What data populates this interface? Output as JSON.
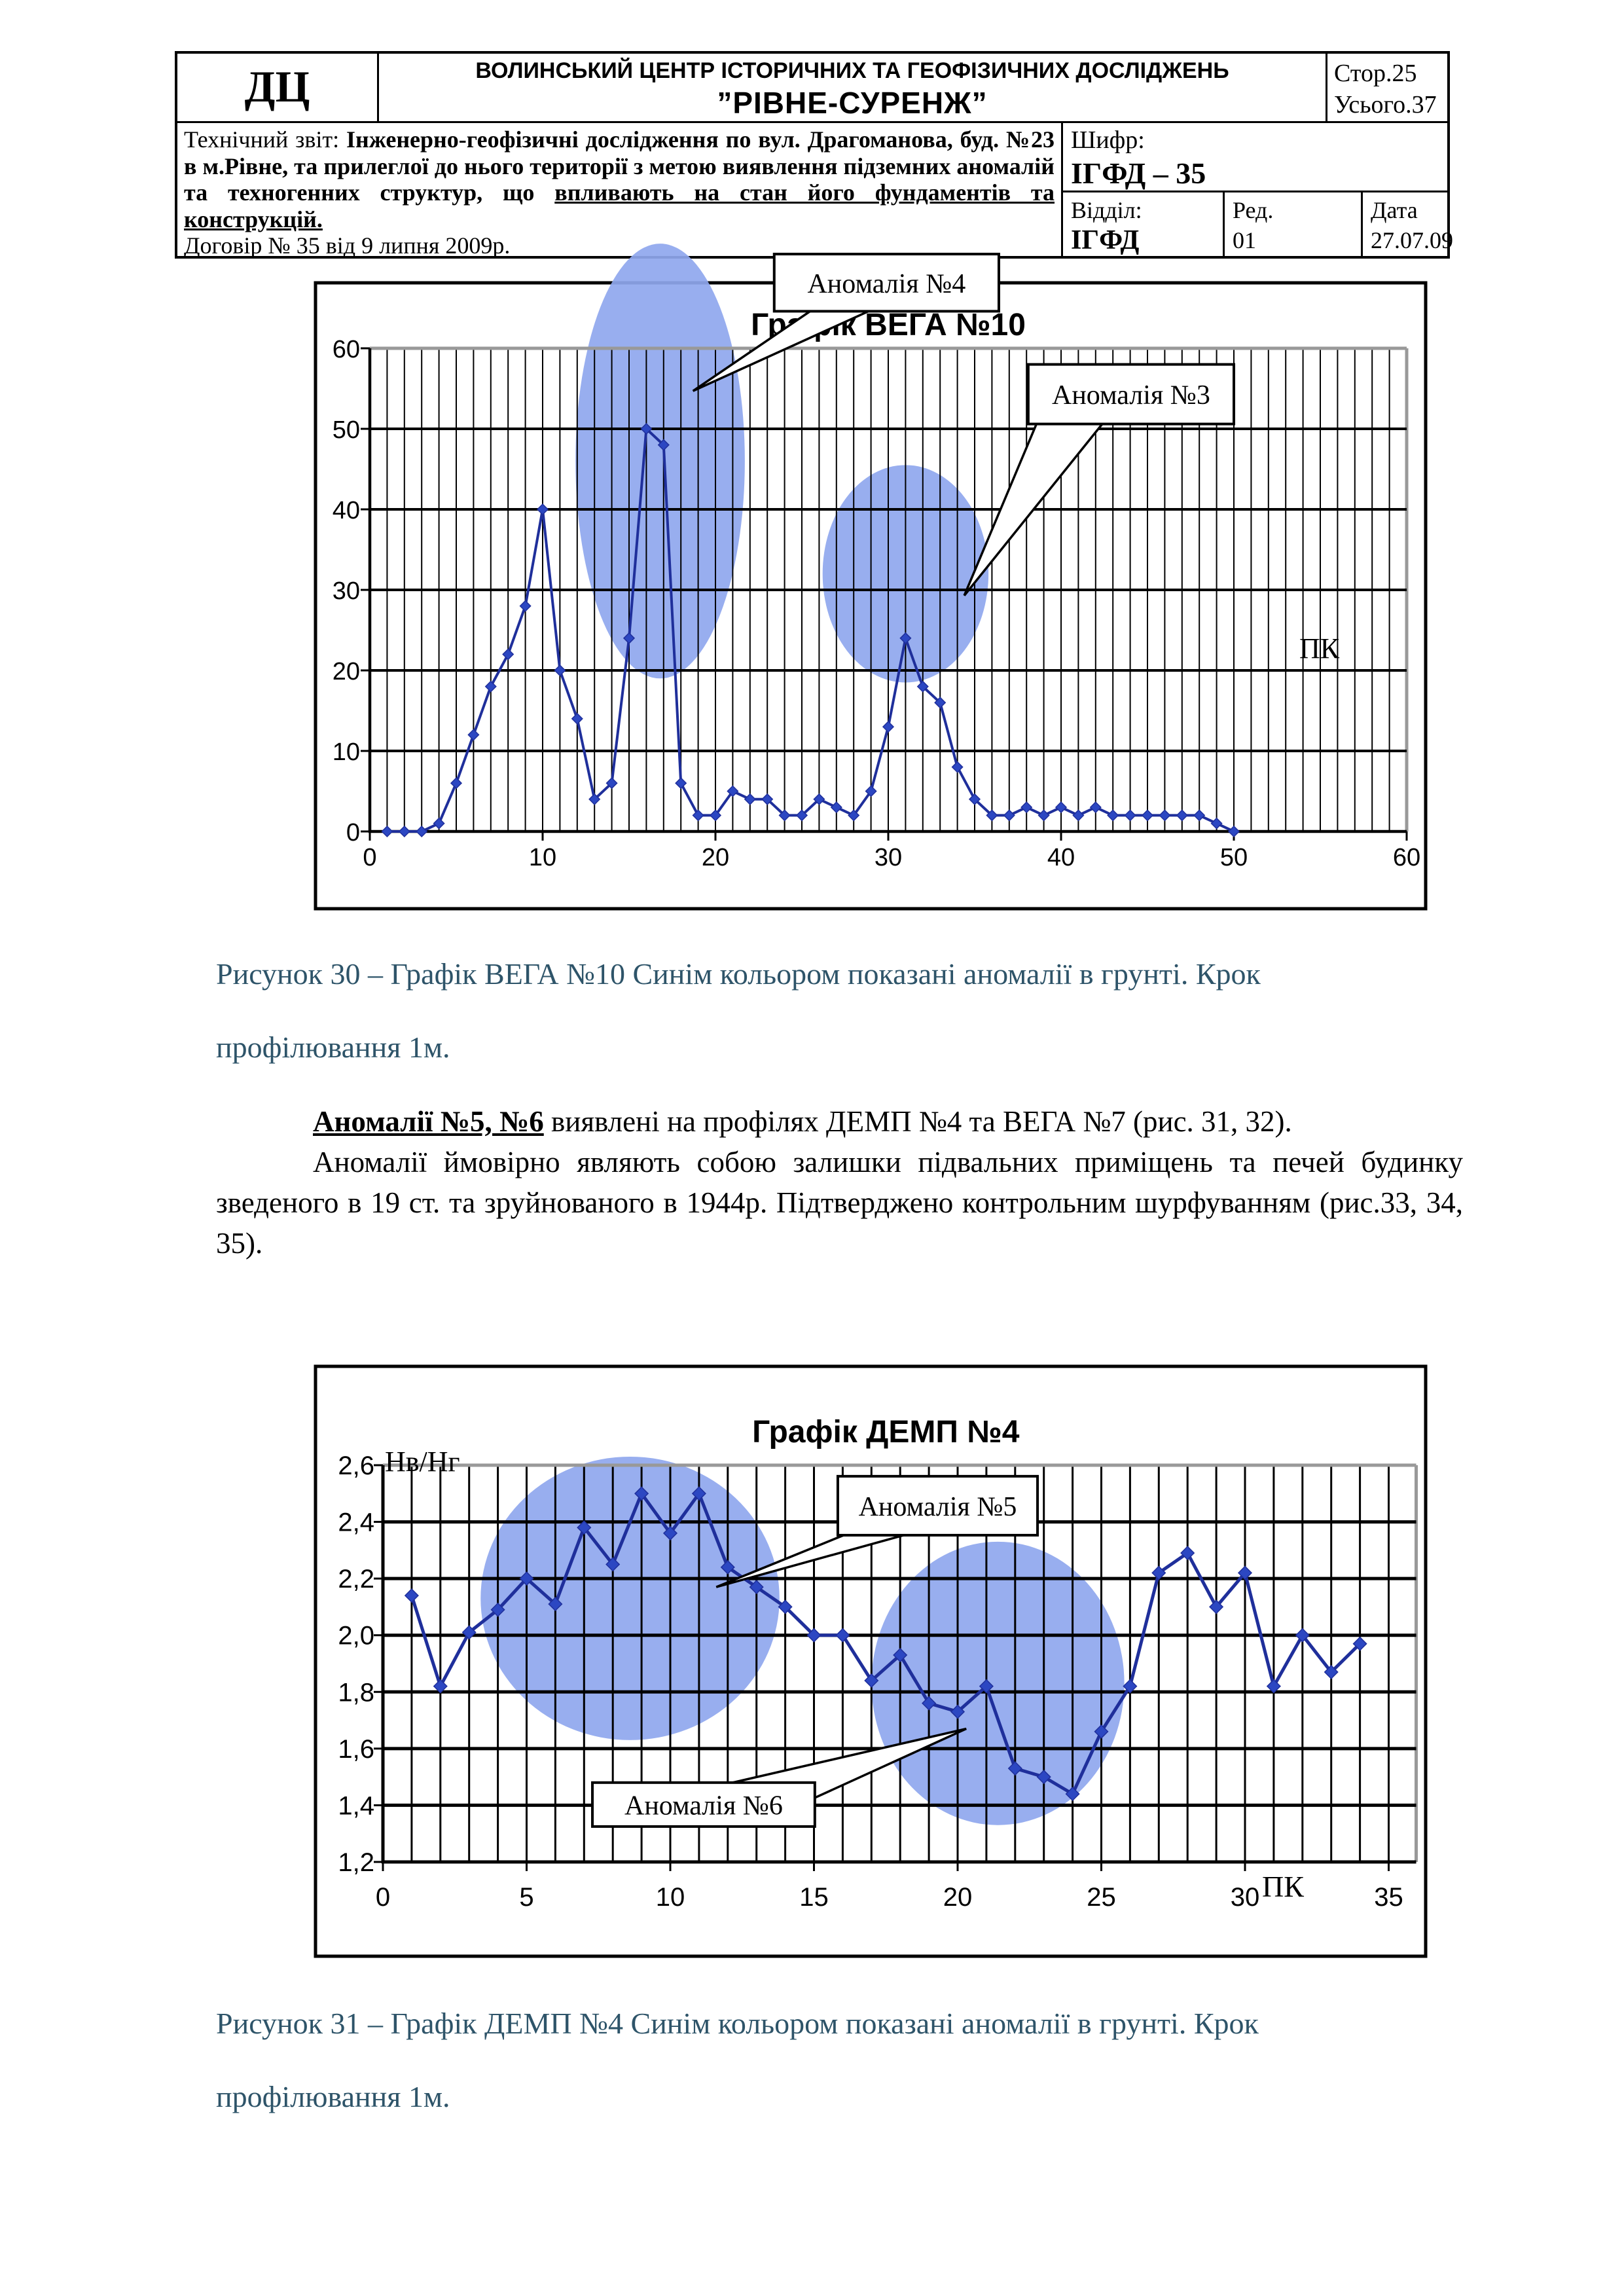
{
  "header": {
    "logo": "ДЦ",
    "org_line1": "ВОЛИНСЬКИЙ ЦЕНТР ІСТОРИЧНИХ ТА ГЕОФІЗИЧНИХ ДОСЛІДЖЕНЬ",
    "org_line2": "”РІВНЕ-СУРЕНЖ”",
    "page_label": "Стор.25",
    "total_label": "Усього.37",
    "report_label": "Технічний звіт:",
    "report_bold": "Інженерно-геофізичні дослідження по вул. Драгоманова, буд. №23 в м.Рівне, та прилеглої до нього території з метою виявлення підземних аномалій та техногенних структур, що",
    "report_bold_underline": "впливають на стан його фундаментів та конструкцій.",
    "contract": "Договір № 35 від 9 липня 2009р.",
    "cipher_label": "Шифр:",
    "cipher_value": "ІГФД – 35",
    "dept_label": "Відділ:",
    "dept_value": "ІГФД",
    "red_label": "Ред.",
    "red_value": "01",
    "date_label": "Дата",
    "date_value": "27.07.09"
  },
  "captions": {
    "fig30_line1": "Рисунок 30 – Графік ВЕГА №10 Синім кольором показані аномалії в грунті. Крок",
    "fig30_line2": "профілювання 1м.",
    "fig31_line1": "Рисунок 31 – Графік ДЕМП №4 Синім кольором показані аномалії в грунті. Крок",
    "fig31_line2": "профілювання 1м."
  },
  "paragraphs": {
    "p1_bold": "Аномалії №5, №6",
    "p1_rest": " виявлені на профілях ДЕМП №4 та ВЕГА №7 (рис. 31, 32).",
    "p2": "Аномалії ймовірно являють собою залишки підвальних приміщень та печей будинку зведеного в 19 ст. та зруйнованого в 1944р. Підтверджено контрольним шурфуванням (рис.33, 34, 35)."
  },
  "colors": {
    "series_line": "#1F2F9B",
    "marker": "#2C47C2",
    "anomaly_fill": "#8FA7EE",
    "gray_border": "#999999",
    "caption_text": "#2E5469"
  },
  "chart_data": [
    {
      "type": "line",
      "title": "Графік ВЕГА №10",
      "x_unit_label": "ПК",
      "xlim": [
        0,
        60
      ],
      "ylim": [
        0,
        60
      ],
      "xticks": [
        0,
        10,
        20,
        30,
        40,
        50,
        60
      ],
      "yticks": [
        0,
        10,
        20,
        30,
        40,
        50,
        60
      ],
      "ytick_labels": [
        "0",
        "10",
        "20",
        "30",
        "40",
        "50",
        "60"
      ],
      "xtick_labels": [
        "0",
        "10",
        "20",
        "30",
        "40",
        "50",
        "60"
      ],
      "x": [
        1,
        2,
        3,
        4,
        5,
        6,
        7,
        8,
        9,
        10,
        11,
        12,
        13,
        14,
        15,
        16,
        17,
        18,
        19,
        20,
        21,
        22,
        23,
        24,
        25,
        26,
        27,
        28,
        29,
        30,
        31,
        32,
        33,
        34,
        35,
        36,
        37,
        38,
        39,
        40,
        41,
        42,
        43,
        44,
        45,
        46,
        47,
        48,
        49,
        50
      ],
      "values": [
        0,
        0,
        0,
        1,
        6,
        12,
        18,
        22,
        28,
        40,
        20,
        14,
        4,
        6,
        24,
        50,
        48,
        6,
        2,
        2,
        5,
        4,
        4,
        2,
        2,
        4,
        3,
        2,
        5,
        13,
        24,
        18,
        16,
        8,
        4,
        2,
        2,
        3,
        2,
        3,
        2,
        3,
        2,
        2,
        2,
        2,
        2,
        2,
        1,
        0
      ],
      "annotations": [
        {
          "label": "Аномалія №4",
          "ellipse": {
            "cx": 16.8,
            "cy": 46.0,
            "rx": 4.9,
            "ry": 27.0
          },
          "box": {
            "x": 23.4,
            "y": 71.7,
            "w": 13.0,
            "h": 7.1
          },
          "tip": [
            18.7,
            54.7
          ],
          "base": [
            [
              0.16,
              1
            ],
            [
              0.42,
              1
            ]
          ]
        },
        {
          "label": "Аномалія №3",
          "ellipse": {
            "cx": 31.0,
            "cy": 32.0,
            "rx": 4.8,
            "ry": 13.5
          },
          "box": {
            "x": 38.1,
            "y": 58.0,
            "w": 11.9,
            "h": 7.4
          },
          "tip": [
            34.4,
            29.3
          ],
          "base": [
            [
              0.04,
              1
            ],
            [
              0.36,
              1
            ]
          ]
        }
      ]
    },
    {
      "type": "line",
      "title": "Графік ДЕМП №4",
      "ylabel": "Нв/Нг",
      "x_unit_label": "ПК",
      "xlim": [
        0,
        35
      ],
      "ylim": [
        1.2,
        2.6
      ],
      "xticks": [
        0,
        5,
        10,
        15,
        20,
        25,
        30,
        35
      ],
      "yticks": [
        1.2,
        1.4,
        1.6,
        1.8,
        2.0,
        2.2,
        2.4,
        2.6
      ],
      "ytick_labels": [
        "1,2",
        "1,4",
        "1,6",
        "1,8",
        "2,0",
        "2,2",
        "2,4",
        "2,6"
      ],
      "xtick_labels": [
        "0",
        "5",
        "10",
        "15",
        "20",
        "25",
        "30",
        "35"
      ],
      "x": [
        1,
        2,
        3,
        4,
        5,
        6,
        7,
        8,
        9,
        10,
        11,
        12,
        13,
        14,
        15,
        16,
        17,
        18,
        19,
        20,
        21,
        22,
        23,
        24,
        25,
        26,
        27,
        28,
        29,
        30,
        31,
        32,
        33,
        34
      ],
      "values": [
        2.14,
        1.82,
        2.01,
        2.09,
        2.2,
        2.11,
        2.38,
        2.25,
        2.5,
        2.36,
        2.5,
        2.24,
        2.17,
        2.1,
        2.0,
        2.0,
        1.84,
        1.93,
        1.76,
        1.73,
        1.82,
        1.53,
        1.5,
        1.44,
        1.66,
        1.82,
        2.22,
        2.29,
        2.1,
        2.22,
        1.82,
        2.0,
        1.87,
        1.97
      ],
      "annotations": [
        {
          "label": "Аномалія №5",
          "ellipse": {
            "cx": 8.6,
            "cy": 2.13,
            "rx": 5.2,
            "ry": 0.5
          },
          "box": {
            "x": 15.83,
            "y": 2.561,
            "w": 6.95,
            "h": 0.208
          },
          "tip": [
            11.6,
            2.17
          ],
          "base": [
            [
              0.03,
              1
            ],
            [
              0.33,
              1
            ]
          ]
        },
        {
          "label": "Аномалія №6",
          "ellipse": {
            "cx": 21.4,
            "cy": 1.83,
            "rx": 4.4,
            "ry": 0.5
          },
          "box": {
            "x": 7.29,
            "y": 1.48,
            "w": 7.74,
            "h": 0.155
          },
          "tip": [
            20.3,
            1.67
          ],
          "base": [
            [
              0.63,
              0
            ],
            [
              0.985,
              0.38
            ]
          ]
        }
      ]
    }
  ]
}
